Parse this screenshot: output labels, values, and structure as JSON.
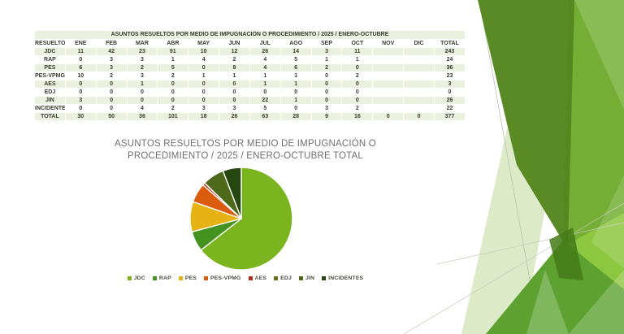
{
  "table": {
    "title": "ASUNTOS RESUELTOS POR MEDIO DE IMPUGNACIÓN O PROCEDIMIENTO / 2025 / ENERO-OCTUBRE",
    "columns": [
      "RESUELTOS",
      "ENE",
      "FEB",
      "MAR",
      "ABR",
      "MAY",
      "JUN",
      "JUL",
      "AGO",
      "SEP",
      "OCT",
      "NOV",
      "DIC",
      "TOTAL"
    ],
    "rows": [
      {
        "label": "JDC",
        "values": [
          11,
          42,
          23,
          91,
          10,
          12,
          26,
          14,
          3,
          11,
          "",
          "",
          243
        ]
      },
      {
        "label": "RAP",
        "values": [
          0,
          3,
          3,
          1,
          4,
          2,
          4,
          5,
          1,
          1,
          "",
          "",
          24
        ]
      },
      {
        "label": "PES",
        "values": [
          6,
          3,
          2,
          5,
          0,
          8,
          4,
          6,
          2,
          0,
          "",
          "",
          36
        ]
      },
      {
        "label": "PES-VPMG",
        "values": [
          10,
          2,
          3,
          2,
          1,
          1,
          1,
          1,
          0,
          2,
          "",
          "",
          23
        ]
      },
      {
        "label": "AES",
        "values": [
          0,
          0,
          1,
          0,
          0,
          0,
          1,
          1,
          0,
          0,
          "",
          "",
          3
        ]
      },
      {
        "label": "EDJ",
        "values": [
          0,
          0,
          0,
          0,
          0,
          0,
          0,
          0,
          0,
          0,
          "",
          "",
          0
        ]
      },
      {
        "label": "JIN",
        "values": [
          3,
          0,
          0,
          0,
          0,
          0,
          22,
          1,
          0,
          0,
          "",
          "",
          26
        ]
      },
      {
        "label": "INCIDENTES",
        "values": [
          0,
          0,
          4,
          2,
          3,
          3,
          5,
          0,
          3,
          2,
          "",
          "",
          22
        ]
      },
      {
        "label": "TOTAL",
        "values": [
          30,
          50,
          36,
          101,
          18,
          26,
          63,
          28,
          9,
          16,
          0,
          0,
          377
        ]
      }
    ]
  },
  "chart": {
    "title": "ASUNTOS RESUELTOS POR MEDIO DE IMPUGNACIÓN O PROCEDIMIENTO / 2025 / ENERO-OCTUBRE TOTAL"
  },
  "chart_data": {
    "type": "pie",
    "title": "ASUNTOS RESUELTOS POR MEDIO DE IMPUGNACIÓN O PROCEDIMIENTO / 2025 / ENERO-OCTUBRE TOTAL",
    "labels": [
      "JDC",
      "RAP",
      "PES",
      "PES-VPMG",
      "AES",
      "EDJ",
      "JIN",
      "INCIDENTES"
    ],
    "values": [
      243,
      24,
      36,
      23,
      3,
      0,
      26,
      22
    ],
    "total": 377,
    "colors": [
      "#7ab41f",
      "#44921f",
      "#e7b214",
      "#dc5c0e",
      "#b02d1c",
      "#6d6e22",
      "#4e691a",
      "#26470f"
    ],
    "start_angle_deg": 0,
    "direction": "clockwise",
    "legend_position": "bottom"
  },
  "colors": {
    "table_row_green": "#eaf1de",
    "table_text": "#3b3b33",
    "chart_title_gray": "#6f6f6f",
    "decor_light_green": "#8dc63f",
    "decor_medium_green": "#74ae34",
    "decor_dark_green": "#55861f",
    "decor_pale_green": "#dbe9c4"
  }
}
